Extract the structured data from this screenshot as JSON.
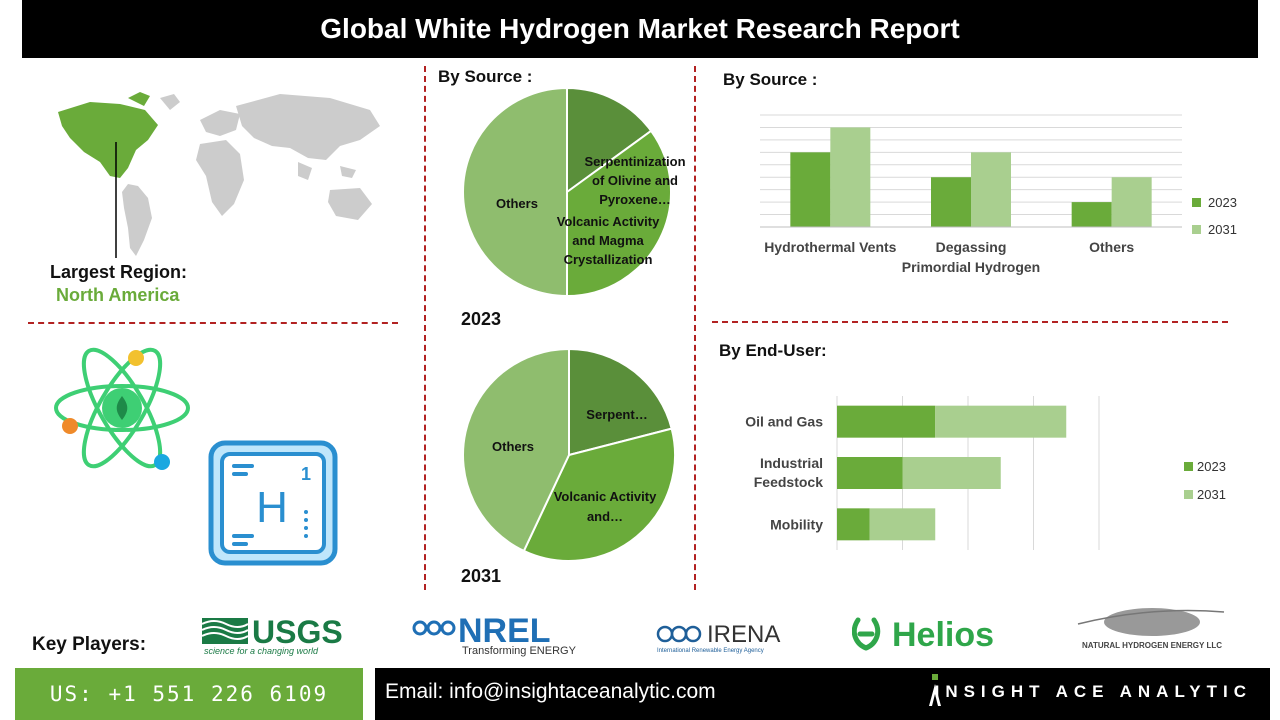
{
  "header": {
    "title": "Global White Hydrogen Market Research Report"
  },
  "region": {
    "label": "Largest Region:",
    "value": "North America",
    "color": "#6aab3a"
  },
  "colors": {
    "dark_green": "#5a8f3a",
    "mid_green": "#6aab3a",
    "light_green": "#8fbd6e",
    "pale_green": "#a9cf8f",
    "divider": "#b22222"
  },
  "pies": {
    "section_title": "By Source :",
    "pie2023": {
      "year": "2023",
      "labels": {
        "serp": "Serpentinization of Olivine and Pyroxene…",
        "volc": "Volcanic Activity and Magma Crystallization",
        "others": "Others"
      }
    },
    "pie2031": {
      "year": "2031",
      "labels": {
        "serp": "Serpent…",
        "volc": "Volcanic Activity and…",
        "others": "Others"
      }
    }
  },
  "bar_source": {
    "title": "By  Source :",
    "legend": [
      "2023",
      "2031"
    ]
  },
  "bar_enduser": {
    "title": "By End-User:",
    "legend": [
      "2023",
      "2031"
    ]
  },
  "key_players": {
    "label": "Key Players:",
    "usgs": "USGS",
    "usgs_tag": "science for a changing world",
    "nrel": "NREL",
    "nrel_tag": "Transforming ENERGY",
    "irena": "IRENA",
    "irena_tag": "International Renewable Energy Agency",
    "helios": "Helios",
    "nhe": "NATURAL HYDROGEN ENERGY LLC"
  },
  "footer": {
    "phone": "US: +1 551 226 6109",
    "email": "Email: info@insightaceanalytic.com",
    "brand": "INSIGHT ACE ANALYTIC"
  },
  "icons": {
    "element_symbol": "H",
    "element_number": "1"
  },
  "chart_data": [
    {
      "type": "pie",
      "title": "2023",
      "categories": [
        "Serpentinization of Olivine and Pyroxene…",
        "Volcanic Activity and Magma Crystallization",
        "Others"
      ],
      "values": [
        15,
        35,
        50
      ]
    },
    {
      "type": "pie",
      "title": "2031",
      "categories": [
        "Serpent…",
        "Volcanic Activity and…",
        "Others"
      ],
      "values": [
        21,
        36,
        43
      ]
    },
    {
      "type": "bar",
      "title": "By  Source :",
      "categories": [
        "Hydrothermal Vents",
        "Degassing Primordial Hydrogen",
        "Others"
      ],
      "series": [
        {
          "name": "2023",
          "values": [
            3,
            2,
            1
          ]
        },
        {
          "name": "2031",
          "values": [
            4,
            3,
            2
          ]
        }
      ],
      "ylim": [
        0,
        4.5
      ],
      "grid": true,
      "legend": "right"
    },
    {
      "type": "bar",
      "orientation": "horizontal",
      "stacked": true,
      "title": "By End-User:",
      "categories": [
        "Oil and Gas",
        "Industrial Feedstock",
        "Mobility"
      ],
      "series": [
        {
          "name": "2023",
          "values": [
            3,
            2,
            1
          ]
        },
        {
          "name": "2031",
          "values": [
            4,
            3,
            2
          ]
        }
      ],
      "xlim": [
        0,
        8
      ],
      "grid": true,
      "legend": "right"
    }
  ]
}
